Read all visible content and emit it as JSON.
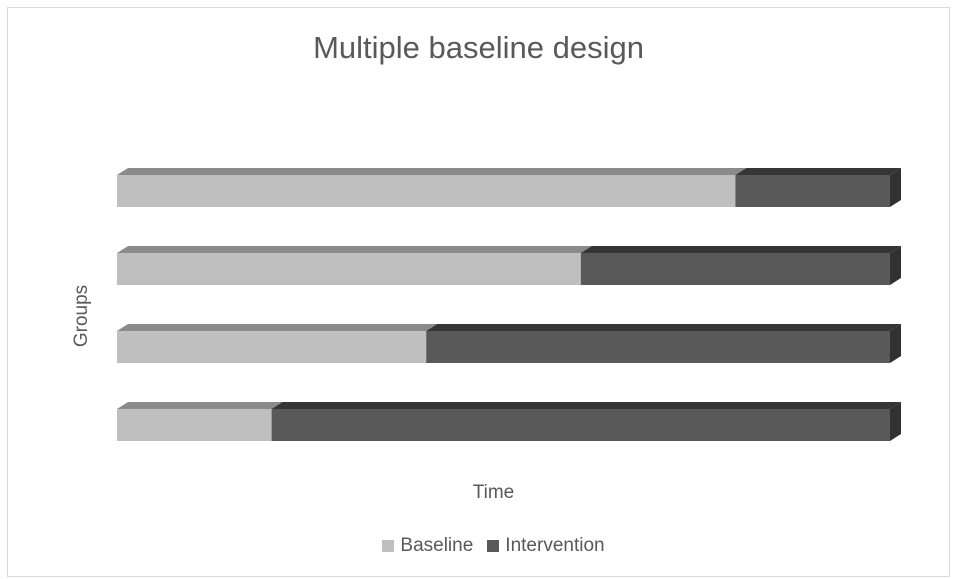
{
  "chart_data": {
    "type": "bar",
    "orientation": "horizontal",
    "stacked": true,
    "three_d": true,
    "title": "Multiple baseline design",
    "xlabel": "Time",
    "ylabel": "Groups",
    "categories": [
      "",
      "",
      "",
      ""
    ],
    "xlim": [
      0,
      1
    ],
    "series": [
      {
        "name": "Baseline",
        "color": "#bfbfbf",
        "values": [
          0.8,
          0.6,
          0.4,
          0.2
        ]
      },
      {
        "name": "Intervention",
        "color": "#595959",
        "values": [
          0.2,
          0.4,
          0.6,
          0.8
        ]
      }
    ],
    "grid": false,
    "legend_position": "bottom"
  }
}
